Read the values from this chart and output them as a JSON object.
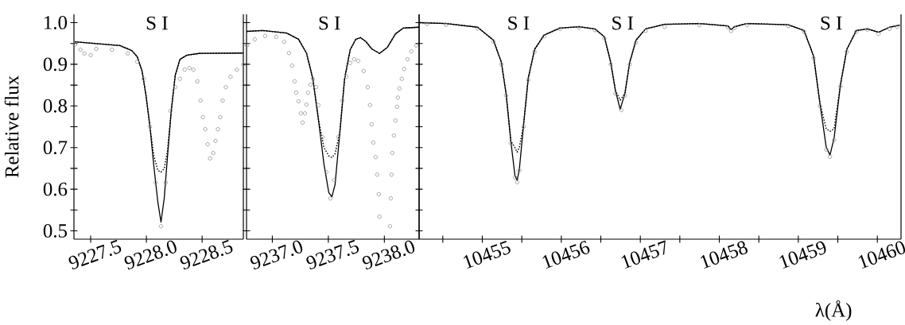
{
  "chart_data": [
    {
      "type": "line",
      "ylabel": "Relative flux",
      "xlim": [
        9227.35,
        9228.87
      ],
      "ylim": [
        0.48,
        1.02
      ],
      "xticks": [
        {
          "value": 9227.5,
          "label": "9227.5"
        },
        {
          "value": 9228,
          "label": "9228.0"
        },
        {
          "value": 9228.5,
          "label": "9228.5"
        }
      ],
      "yticks": [
        0.5,
        {
          "value": 0.55,
          "label": null
        },
        0.6,
        {
          "value": 0.65,
          "label": null
        },
        0.7,
        {
          "value": 0.75,
          "label": null
        },
        0.8,
        {
          "value": 0.85,
          "label": null
        },
        0.9,
        {
          "value": 0.95,
          "label": null
        },
        {
          "value": 1.0,
          "label": "1.0"
        }
      ],
      "annotations": [
        "S I"
      ],
      "series": [
        {
          "color": "#000000",
          "line_style": "solid",
          "marker": "none",
          "x": [
            9227.358,
            9227.762,
            9227.869,
            9227.918,
            9227.961,
            9227.996,
            9228.032,
            9228.067,
            9228.103,
            9228.131,
            9228.16,
            9228.188,
            9228.223,
            9228.259,
            9228.301,
            9228.365,
            9228.472,
            9228.869
          ],
          "values": [
            0.954,
            0.945,
            0.933,
            0.918,
            0.884,
            0.826,
            0.75,
            0.655,
            0.569,
            0.521,
            0.578,
            0.674,
            0.788,
            0.874,
            0.912,
            0.922,
            0.926,
            0.927
          ]
        },
        {
          "color": "#000000",
          "line_style": "dotted",
          "marker": "none",
          "x": [
            9227.358,
            9227.762,
            9227.869,
            9227.918,
            9227.961,
            9227.996,
            9228.032,
            9228.067,
            9228.103,
            9228.131,
            9228.16,
            9228.188,
            9228.223,
            9228.259,
            9228.301,
            9228.365,
            9228.472,
            9228.869
          ],
          "values": [
            0.954,
            0.945,
            0.933,
            0.918,
            0.884,
            0.826,
            0.75,
            0.68,
            0.645,
            0.641,
            0.65,
            0.69,
            0.788,
            0.874,
            0.912,
            0.922,
            0.926,
            0.927
          ]
        },
        {
          "type": "scatter",
          "color": "#8c8c8c",
          "marker": "circle",
          "x": [
            9227.358,
            9227.408,
            9227.443,
            9227.5,
            9227.55,
            9227.691,
            9227.833,
            9227.918,
            9227.975,
            9228.032,
            9228.082,
            9228.131,
            9228.174,
            9228.216,
            9228.259,
            9228.301,
            9228.344,
            9228.387,
            9228.422,
            9228.457,
            9228.486,
            9228.507,
            9228.528,
            9228.55,
            9228.571,
            9228.599,
            9228.62,
            9228.642,
            9228.663,
            9228.684,
            9228.713,
            9228.755,
            9228.812,
            9228.869
          ],
          "values": [
            0.947,
            0.935,
            0.926,
            0.922,
            0.937,
            0.935,
            0.926,
            0.906,
            0.865,
            0.75,
            0.616,
            0.511,
            0.616,
            0.788,
            0.845,
            0.865,
            0.887,
            0.891,
            0.887,
            0.859,
            0.813,
            0.773,
            0.744,
            0.708,
            0.674,
            0.687,
            0.716,
            0.744,
            0.773,
            0.813,
            0.845,
            0.87,
            0.887,
            0.899
          ]
        }
      ]
    },
    {
      "type": "line",
      "tick_labels": "x",
      "xlim": [
        9236.77,
        9238.31
      ],
      "ylim": [
        0.48,
        1.02
      ],
      "xticks": [
        {
          "value": 9237,
          "label": "9237.0"
        },
        {
          "value": 9237.5,
          "label": "9237.5"
        },
        {
          "value": 9238,
          "label": "9238.0"
        }
      ],
      "yticks": [
        0.5,
        {
          "value": 0.55,
          "label": null
        },
        0.6,
        {
          "value": 0.65,
          "label": null
        },
        0.7,
        {
          "value": 0.75,
          "label": null
        },
        0.8,
        {
          "value": 0.85,
          "label": null
        },
        0.9,
        {
          "value": 0.95,
          "label": null
        },
        1.0
      ],
      "annotations": [
        "S I"
      ],
      "series": [
        {
          "color": "#000000",
          "line_style": "solid",
          "marker": "none",
          "x": [
            9236.773,
            9236.915,
            9237.128,
            9237.234,
            9237.305,
            9237.362,
            9237.411,
            9237.461,
            9237.504,
            9237.532,
            9237.56,
            9237.603,
            9237.645,
            9237.695,
            9237.745,
            9237.787,
            9237.837,
            9237.887,
            9237.957,
            9238.028,
            9238.099,
            9238.17,
            9238.31
          ],
          "values": [
            0.979,
            0.981,
            0.975,
            0.96,
            0.927,
            0.865,
            0.769,
            0.66,
            0.592,
            0.582,
            0.611,
            0.737,
            0.865,
            0.935,
            0.96,
            0.964,
            0.954,
            0.937,
            0.926,
            0.941,
            0.973,
            0.987,
            0.989
          ]
        },
        {
          "color": "#000000",
          "line_style": "dotted",
          "marker": "none",
          "x": [
            9236.773,
            9236.915,
            9237.128,
            9237.234,
            9237.305,
            9237.362,
            9237.411,
            9237.461,
            9237.504,
            9237.532,
            9237.56,
            9237.603,
            9237.645,
            9237.695,
            9237.745,
            9237.787,
            9237.837,
            9237.887,
            9237.957,
            9238.028,
            9238.099,
            9238.17,
            9238.31
          ],
          "values": [
            0.979,
            0.981,
            0.975,
            0.96,
            0.927,
            0.865,
            0.769,
            0.7,
            0.68,
            0.676,
            0.685,
            0.737,
            0.865,
            0.935,
            0.96,
            0.964,
            0.954,
            0.937,
            0.926,
            0.941,
            0.973,
            0.987,
            0.989
          ]
        },
        {
          "type": "scatter",
          "color": "#8c8c8c",
          "marker": "circle",
          "x": [
            9236.773,
            9236.844,
            9236.936,
            9237.035,
            9237.106,
            9237.149,
            9237.177,
            9237.199,
            9237.213,
            9237.234,
            9237.255,
            9237.27,
            9237.291,
            9237.305,
            9237.319,
            9237.34,
            9237.362,
            9237.39,
            9237.411,
            9237.447,
            9237.482,
            9237.518,
            9237.553,
            9237.589,
            9237.624,
            9237.66,
            9237.695,
            9237.73,
            9237.766,
            9237.816,
            9237.851,
            9237.872,
            9237.887,
            9237.901,
            9237.922,
            9237.936,
            9237.95,
            9237.957,
            9238.05,
            9238.057,
            9238.064,
            9238.071,
            9238.085,
            9238.099,
            9238.113,
            9238.121,
            9238.135,
            9238.156,
            9238.177,
            9238.206,
            9238.241,
            9238.284
          ],
          "values": [
            0.945,
            0.96,
            0.968,
            0.966,
            0.954,
            0.927,
            0.897,
            0.859,
            0.832,
            0.811,
            0.782,
            0.76,
            0.782,
            0.803,
            0.832,
            0.851,
            0.865,
            0.845,
            0.802,
            0.725,
            0.641,
            0.578,
            0.622,
            0.725,
            0.813,
            0.87,
            0.903,
            0.912,
            0.908,
            0.884,
            0.845,
            0.802,
            0.756,
            0.712,
            0.677,
            0.635,
            0.588,
            0.534,
            0.511,
            0.578,
            0.635,
            0.687,
            0.729,
            0.765,
            0.798,
            0.82,
            0.842,
            0.865,
            0.889,
            0.912,
            0.931,
            0.945
          ]
        }
      ]
    },
    {
      "type": "line",
      "tick_labels": "x",
      "xlabel": "λ(Å)",
      "xlim": [
        10454.2,
        10460.3
      ],
      "ylim": [
        0.48,
        1.02
      ],
      "xticks": [
        {
          "value": 10454.5,
          "label": null
        },
        10455,
        {
          "value": 10455.5,
          "label": null
        },
        10456,
        {
          "value": 10456.5,
          "label": null
        },
        10457,
        {
          "value": 10457.5,
          "label": null
        },
        10458,
        {
          "value": 10458.5,
          "label": null
        },
        10459,
        {
          "value": 10459.5,
          "label": null
        },
        10460
      ],
      "yticks": [
        0.5,
        {
          "value": 0.55,
          "label": null
        },
        0.6,
        {
          "value": 0.65,
          "label": null
        },
        0.7,
        {
          "value": 0.75,
          "label": null
        },
        0.8,
        {
          "value": 0.85,
          "label": null
        },
        0.9,
        {
          "value": 0.95,
          "label": null
        },
        1.0
      ],
      "annotations": [
        "S I",
        "S I",
        "S I"
      ],
      "series": [
        {
          "color": "#000000",
          "line_style": "solid",
          "marker": "none",
          "x": [
            10454.208,
            10454.539,
            10454.94,
            10455.14,
            10455.241,
            10455.301,
            10455.361,
            10455.413,
            10455.441,
            10455.469,
            10455.522,
            10455.582,
            10455.662,
            10455.782,
            10455.983,
            10456.224,
            10456.424,
            10456.545,
            10456.625,
            10456.685,
            10456.745,
            10456.805,
            10456.866,
            10456.946,
            10457.066,
            10457.307,
            10457.748,
            10458.109,
            10458.149,
            10458.19,
            10458.35,
            10458.872,
            10459.072,
            10459.193,
            10459.273,
            10459.353,
            10459.401,
            10459.453,
            10459.534,
            10459.614,
            10459.734,
            10459.875,
            10460.015,
            10460.155,
            10460.286
          ],
          "values": [
            1.0,
            0.998,
            0.989,
            0.958,
            0.905,
            0.83,
            0.716,
            0.633,
            0.621,
            0.648,
            0.754,
            0.867,
            0.936,
            0.97,
            0.987,
            0.99,
            0.985,
            0.966,
            0.905,
            0.837,
            0.792,
            0.83,
            0.905,
            0.958,
            0.985,
            0.996,
            0.998,
            0.992,
            0.983,
            0.99,
            0.998,
            0.995,
            0.981,
            0.92,
            0.807,
            0.701,
            0.682,
            0.723,
            0.852,
            0.936,
            0.981,
            0.985,
            0.977,
            0.989,
            0.994
          ]
        },
        {
          "color": "#000000",
          "line_style": "dotted",
          "marker": "none",
          "x": [
            10454.208,
            10454.539,
            10454.94,
            10455.14,
            10455.241,
            10455.301,
            10455.361,
            10455.413,
            10455.441,
            10455.469,
            10455.522,
            10455.582,
            10455.662,
            10455.782,
            10455.983,
            10456.224,
            10456.424,
            10456.545,
            10456.625,
            10456.685,
            10456.745,
            10456.805,
            10456.866,
            10456.946,
            10457.066,
            10457.307,
            10457.748,
            10458.109,
            10458.149,
            10458.19,
            10458.35,
            10458.872,
            10459.072,
            10459.193,
            10459.273,
            10459.353,
            10459.401,
            10459.453,
            10459.534,
            10459.614,
            10459.734,
            10459.875,
            10460.015,
            10460.155,
            10460.286
          ],
          "values": [
            1.0,
            0.998,
            0.989,
            0.958,
            0.905,
            0.83,
            0.716,
            0.7,
            0.689,
            0.7,
            0.754,
            0.867,
            0.936,
            0.97,
            0.987,
            0.99,
            0.985,
            0.966,
            0.905,
            0.837,
            0.814,
            0.83,
            0.905,
            0.958,
            0.985,
            0.996,
            0.998,
            0.992,
            0.983,
            0.99,
            0.998,
            0.995,
            0.981,
            0.92,
            0.807,
            0.745,
            0.739,
            0.745,
            0.852,
            0.936,
            0.981,
            0.985,
            0.977,
            0.989,
            0.994
          ]
        },
        {
          "type": "scatter",
          "color": "#8c8c8c",
          "marker": "circle",
          "x": [
            10454.3,
            10454.539,
            10454.94,
            10455.14,
            10455.241,
            10455.301,
            10455.361,
            10455.413,
            10455.441,
            10455.469,
            10455.522,
            10455.582,
            10455.662,
            10455.782,
            10455.983,
            10456.224,
            10456.424,
            10456.545,
            10456.625,
            10456.685,
            10456.76,
            10456.805,
            10456.866,
            10456.946,
            10457.066,
            10457.307,
            10457.748,
            10458.109,
            10458.149,
            10458.19,
            10458.35,
            10458.872,
            10459.072,
            10459.193,
            10459.273,
            10459.353,
            10459.401,
            10459.453,
            10459.534,
            10459.614,
            10459.734,
            10459.875,
            10460.015,
            10460.155,
            10460.25
          ],
          "values": [
            0.997,
            0.995,
            0.986,
            0.955,
            0.9,
            0.825,
            0.71,
            0.628,
            0.617,
            0.645,
            0.75,
            0.862,
            0.93,
            0.967,
            0.985,
            0.988,
            0.982,
            0.962,
            0.9,
            0.83,
            0.79,
            0.825,
            0.9,
            0.952,
            0.98,
            0.99,
            0.994,
            0.989,
            0.98,
            0.987,
            0.994,
            0.992,
            0.978,
            0.915,
            0.8,
            0.695,
            0.678,
            0.718,
            0.847,
            0.93,
            0.978,
            0.983,
            0.973,
            0.985,
            0.99
          ]
        }
      ]
    }
  ]
}
